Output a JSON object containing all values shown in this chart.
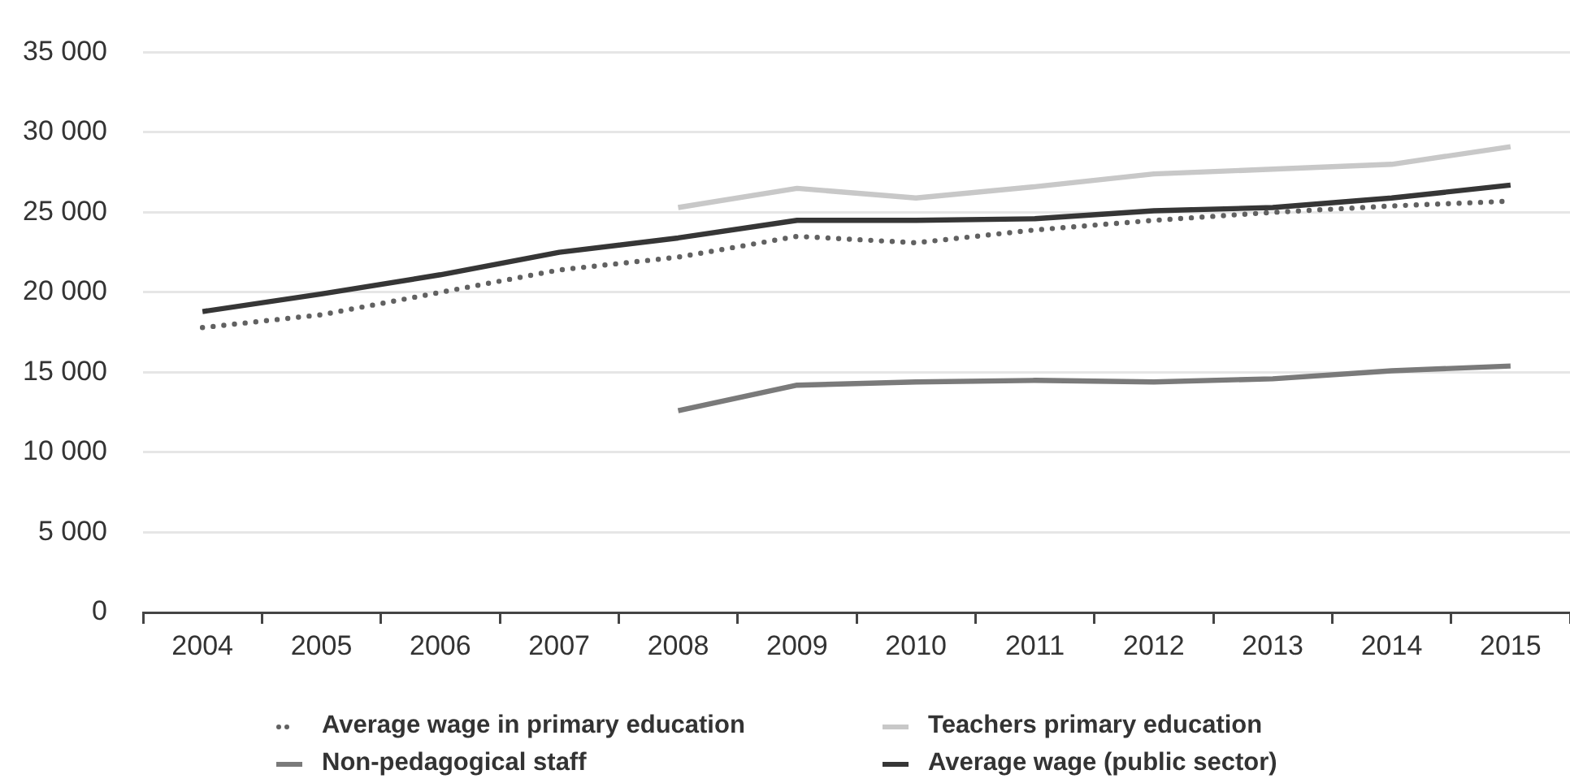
{
  "chart_data": {
    "type": "line",
    "categories": [
      "2004",
      "2005",
      "2006",
      "2007",
      "2008",
      "2009",
      "2010",
      "2011",
      "2012",
      "2013",
      "2014",
      "2015"
    ],
    "ylim": [
      0,
      35000
    ],
    "yticks": [
      0,
      {
        "value": 5000,
        "label": "5 000"
      },
      {
        "value": 10000,
        "label": "10 000"
      },
      {
        "value": 15000,
        "label": "15 000"
      },
      {
        "value": 20000,
        "label": "20 000"
      },
      {
        "value": 25000,
        "label": "25 000"
      },
      {
        "value": 30000,
        "label": "30 000"
      },
      {
        "value": 35000,
        "label": "35 000"
      }
    ],
    "grid": "y",
    "legend": "bottom",
    "marker": "none",
    "series": [
      {
        "name": "Average wage in primary education",
        "color": "#616161",
        "line_style": "dotted",
        "values": [
          17800,
          18600,
          20000,
          21400,
          22200,
          23500,
          23100,
          23900,
          24500,
          25000,
          25400,
          25700
        ]
      },
      {
        "name": "Teachers primary education",
        "color": "#c8c8c8",
        "line_style": "solid",
        "values": [
          null,
          null,
          null,
          null,
          25300,
          26500,
          25900,
          26600,
          27400,
          27700,
          28000,
          29100
        ]
      },
      {
        "name": "Non-pedagogical staff",
        "color": "#7a7a7a",
        "line_style": "solid",
        "values": [
          null,
          null,
          null,
          null,
          12600,
          14200,
          14400,
          14500,
          14400,
          14600,
          15100,
          15400
        ]
      },
      {
        "name": "Average wage (public sector)",
        "color": "#363636",
        "line_style": "solid",
        "values": [
          18800,
          19900,
          21100,
          22500,
          23400,
          24500,
          24500,
          24600,
          25100,
          25300,
          25900,
          26700
        ]
      }
    ]
  }
}
